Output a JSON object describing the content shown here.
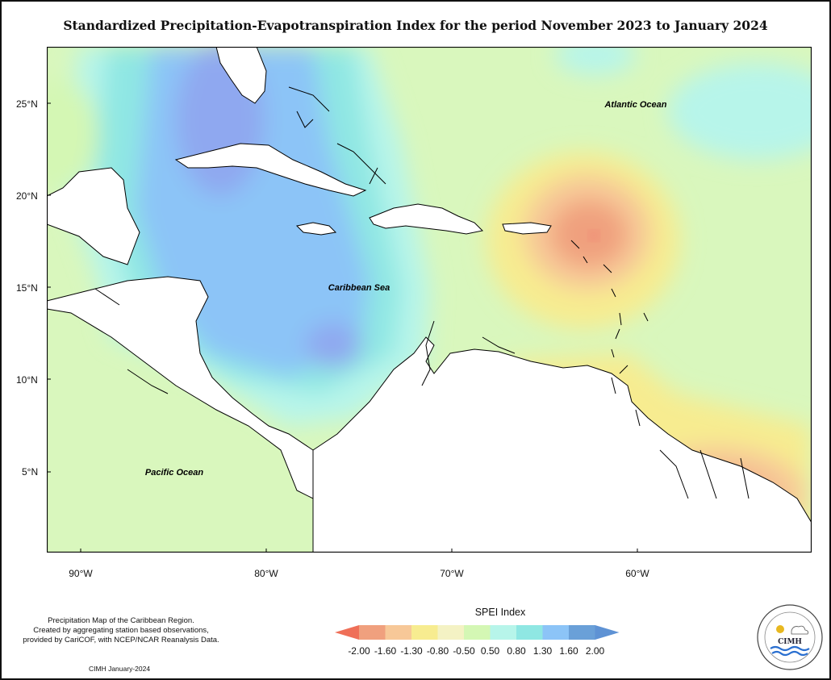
{
  "title": "Standardized Precipitation-Evapotranspiration Index for the period November 2023 to January 2024",
  "map": {
    "labels": {
      "atlantic": "Atlantic Ocean",
      "caribbean": "Caribbean Sea",
      "pacific": "Pacific Ocean"
    },
    "lat_ticks": [
      "25°N",
      "20°N",
      "15°N",
      "10°N",
      "5°N"
    ],
    "lon_ticks": [
      "90°W",
      "80°W",
      "70°W",
      "60°W"
    ]
  },
  "credits": {
    "line1": "Precipitation Map of the Caribbean Region.",
    "line2": "Created by aggregating station based observations,",
    "line3": "provided by CariCOF, with NCEP/NCAR Reanalysis Data.",
    "date": "CIMH January-2024"
  },
  "legend": {
    "title": "SPEI Index",
    "labels": [
      "-2.00",
      "-1.60",
      "-1.30",
      "-0.80",
      "-0.50",
      "0.50",
      "0.80",
      "1.30",
      "1.60",
      "2.00"
    ],
    "colors": [
      "#ef6f58",
      "#f0a07e",
      "#f7c898",
      "#f7ec90",
      "#f4f2c4",
      "#d4f7b4",
      "#b7f5ea",
      "#8fe7e3",
      "#8cc4f7",
      "#6aa0d8",
      "#5e92d4"
    ]
  },
  "logo": {
    "abbr": "CIMH"
  }
}
